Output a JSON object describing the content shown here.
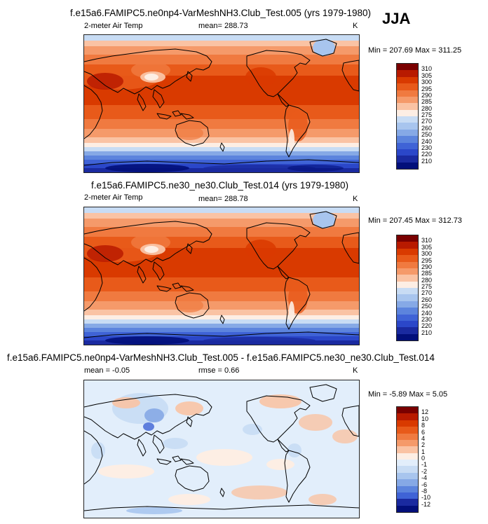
{
  "season": "JJA",
  "panels": [
    {
      "title": "f.e15a6.FAMIPC5.ne0np4-VarMeshNH3.Club_Test.005 (yrs 1979-1980)",
      "variable": "2-meter Air Temp",
      "mean": "mean= 288.73",
      "units": "K",
      "minmax": "Min = 207.69 Max = 311.25",
      "field": "abs",
      "levels": [
        "310",
        "305",
        "300",
        "295",
        "290",
        "285",
        "280",
        "275",
        "270",
        "260",
        "250",
        "240",
        "230",
        "220",
        "210"
      ]
    },
    {
      "title": "f.e15a6.FAMIPC5.ne30_ne30.Club_Test.014 (yrs 1979-1980)",
      "variable": "2-meter Air Temp",
      "mean": "mean= 288.78",
      "units": "K",
      "minmax": "Min = 207.45 Max = 312.73",
      "field": "abs",
      "levels": [
        "310",
        "305",
        "300",
        "295",
        "290",
        "285",
        "280",
        "275",
        "270",
        "260",
        "250",
        "240",
        "230",
        "220",
        "210"
      ]
    },
    {
      "title": "f.e15a6.FAMIPC5.ne0np4-VarMeshNH3.Club_Test.005 - f.e15a6.FAMIPC5.ne30_ne30.Club_Test.014",
      "variable": "mean =  -0.05",
      "mean": "rmse =   0.66",
      "units": "K",
      "minmax": "Min =  -5.89 Max =   5.05",
      "field": "diff",
      "levels": [
        "12",
        "10",
        "8",
        "6",
        "4",
        "2",
        "1",
        "0",
        "-1",
        "-2",
        "-4",
        "-6",
        "-8",
        "-10",
        "-12"
      ]
    }
  ],
  "colors": {
    "abs_scale": [
      "#7a0000",
      "#b81a00",
      "#d93a00",
      "#e85a1a",
      "#f07a40",
      "#f59a6a",
      "#fac3a4",
      "#fdeee4",
      "#c8dcf4",
      "#a8c5ee",
      "#86a9e6",
      "#5c84dd",
      "#3f63d6",
      "#2b47c9",
      "#1a2aa0",
      "#020f7a"
    ],
    "diff_scale": [
      "#7a0000",
      "#b81a00",
      "#d93a00",
      "#e85a1a",
      "#f07a40",
      "#f59a6a",
      "#fac3a4",
      "#fdeee4",
      "#e2eefb",
      "#c8dcf4",
      "#a8c5ee",
      "#86a9e6",
      "#5c84dd",
      "#3f63d6",
      "#1a2aa0",
      "#020f7a"
    ]
  }
}
